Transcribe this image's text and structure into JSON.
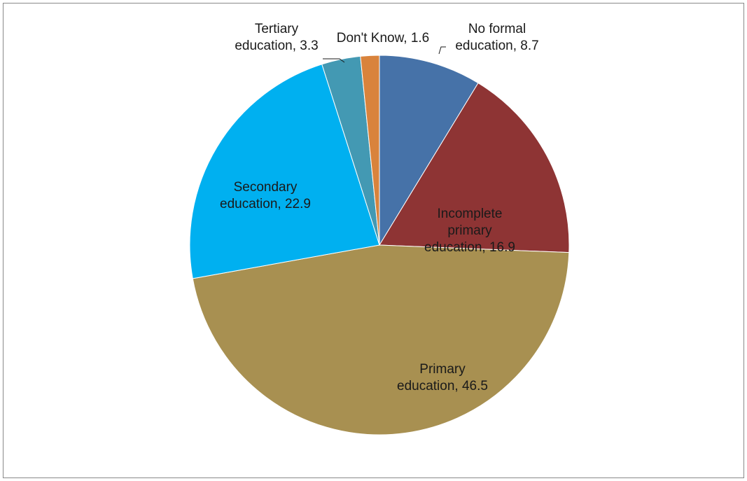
{
  "chart_data": {
    "type": "pie",
    "title": "",
    "start_angle_deg": 0,
    "direction": "clockwise",
    "slices": [
      {
        "label": "No formal education",
        "value": 8.7,
        "color": "#4672a8",
        "label_lines": [
          "No formal",
          "education, 8.7"
        ]
      },
      {
        "label": "Incomplete primary education",
        "value": 16.9,
        "color": "#8e3434",
        "label_lines": [
          "Incomplete",
          "primary",
          "education, 16.9"
        ]
      },
      {
        "label": "Primary education",
        "value": 46.5,
        "color": "#a89051",
        "label_lines": [
          "Primary",
          "education, 46.5"
        ]
      },
      {
        "label": "Secondary education",
        "value": 22.9,
        "color": "#00b0f0",
        "label_lines": [
          "Secondary",
          "education, 22.9"
        ]
      },
      {
        "label": "Tertiary education",
        "value": 3.3,
        "color": "#4399b3",
        "label_lines": [
          "Tertiary",
          "education, 3.3"
        ]
      },
      {
        "label": "Don't Know",
        "value": 1.6,
        "color": "#d9833c",
        "label_lines": [
          "Don't Know, 1.6"
        ]
      }
    ]
  }
}
